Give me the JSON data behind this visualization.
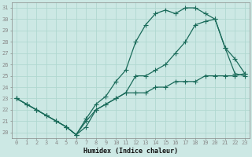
{
  "xlabel": "Humidex (Indice chaleur)",
  "bg_color": "#cce8e4",
  "line_color": "#1a6b5a",
  "grid_color": "#b0d8d0",
  "xlim": [
    -0.5,
    23.5
  ],
  "ylim": [
    19.5,
    31.5
  ],
  "xticks": [
    0,
    1,
    2,
    3,
    4,
    5,
    6,
    7,
    8,
    9,
    10,
    11,
    12,
    13,
    14,
    15,
    16,
    17,
    18,
    19,
    20,
    21,
    22,
    23
  ],
  "yticks": [
    20,
    21,
    22,
    23,
    24,
    25,
    26,
    27,
    28,
    29,
    30,
    31
  ],
  "line1_x": [
    0,
    1,
    2,
    3,
    4,
    5,
    6,
    7,
    8,
    9,
    10,
    11,
    12,
    13,
    14,
    15,
    16,
    17,
    18,
    19,
    20,
    21,
    22,
    23
  ],
  "line1_y": [
    23.0,
    22.5,
    22.0,
    21.5,
    21.0,
    20.5,
    19.8,
    21.2,
    22.5,
    23.2,
    24.5,
    25.5,
    28.0,
    29.5,
    30.5,
    30.8,
    30.5,
    31.0,
    31.0,
    30.5,
    30.0,
    27.5,
    25.2,
    25.0
  ],
  "line2_x": [
    0,
    1,
    2,
    3,
    4,
    5,
    6,
    7,
    8,
    9,
    10,
    11,
    12,
    13,
    14,
    15,
    16,
    17,
    18,
    19,
    20,
    21,
    22,
    23
  ],
  "line2_y": [
    23.0,
    22.5,
    22.0,
    21.5,
    21.0,
    20.5,
    19.8,
    20.5,
    22.0,
    22.5,
    23.0,
    23.5,
    25.0,
    25.0,
    25.5,
    26.0,
    27.0,
    28.0,
    29.5,
    29.8,
    30.0,
    27.5,
    26.5,
    25.2
  ],
  "line3_x": [
    0,
    1,
    2,
    3,
    4,
    5,
    6,
    7,
    8,
    9,
    10,
    11,
    12,
    13,
    14,
    15,
    16,
    17,
    18,
    19,
    20,
    21,
    22,
    23
  ],
  "line3_y": [
    23.0,
    22.5,
    22.0,
    21.5,
    21.0,
    20.5,
    19.8,
    21.0,
    22.0,
    22.5,
    23.0,
    23.5,
    23.5,
    23.5,
    24.0,
    24.0,
    24.5,
    24.5,
    24.5,
    25.0,
    25.0,
    25.0,
    25.0,
    25.2
  ],
  "markersize": 2.0,
  "linewidth": 0.9,
  "tick_fontsize": 5.0,
  "xlabel_fontsize": 6.0
}
